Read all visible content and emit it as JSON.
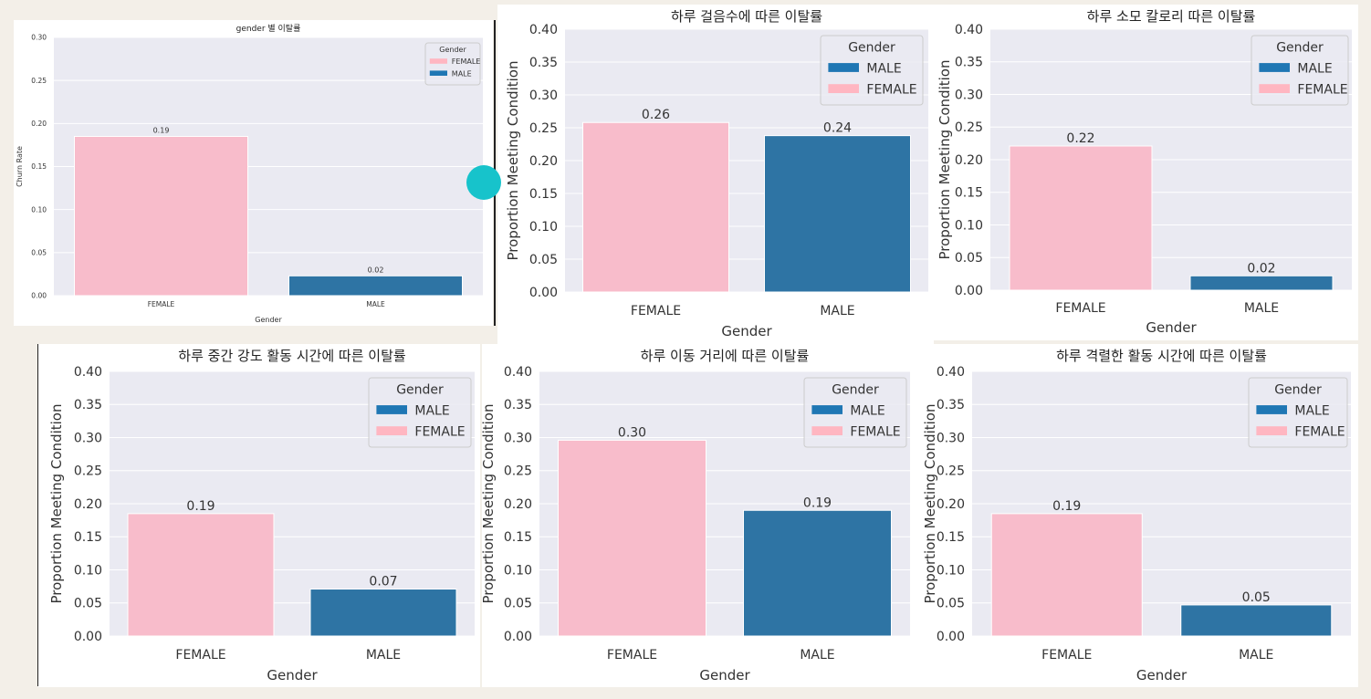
{
  "colors": {
    "female": "#f8bccb",
    "male": "#2e74a4",
    "male_legend": "#1f77b4",
    "female_legend": "#ffb6c1",
    "plot_bg": "#eaeaf2",
    "cursor": "#17c3cb"
  },
  "chart_data": [
    {
      "type": "bar",
      "title": "gender 별 이탈률",
      "xlabel": "Gender",
      "ylabel": "Churn Rate",
      "categories": [
        "FEMALE",
        "MALE"
      ],
      "values": [
        0.185,
        0.023
      ],
      "data_labels": [
        "0.19",
        "0.02"
      ],
      "ylim": [
        0,
        0.3
      ],
      "yticks": [
        "0.00",
        "0.05",
        "0.10",
        "0.15",
        "0.20",
        "0.25",
        "0.30"
      ],
      "grid": true,
      "legend": {
        "title": "Gender",
        "position": "top-right",
        "entries": [
          "FEMALE",
          "MALE"
        ]
      }
    },
    {
      "type": "bar",
      "title": "하루 걸음수에 따른 이탈률",
      "xlabel": "Gender",
      "ylabel": "Proportion Meeting Condition",
      "categories": [
        "FEMALE",
        "MALE"
      ],
      "values": [
        0.258,
        0.238
      ],
      "data_labels": [
        "0.26",
        "0.24"
      ],
      "ylim": [
        0,
        0.4
      ],
      "yticks": [
        "0.00",
        "0.05",
        "0.10",
        "0.15",
        "0.20",
        "0.25",
        "0.30",
        "0.35",
        "0.40"
      ],
      "grid": true,
      "legend": {
        "title": "Gender",
        "position": "top-right",
        "entries": [
          "MALE",
          "FEMALE"
        ]
      }
    },
    {
      "type": "bar",
      "title": "하루 소모 칼로리 따른 이탈률",
      "xlabel": "Gender",
      "ylabel": "Proportion Meeting Condition",
      "categories": [
        "FEMALE",
        "MALE"
      ],
      "values": [
        0.221,
        0.022
      ],
      "data_labels": [
        "0.22",
        "0.02"
      ],
      "ylim": [
        0,
        0.4
      ],
      "yticks": [
        "0.00",
        "0.05",
        "0.10",
        "0.15",
        "0.20",
        "0.25",
        "0.30",
        "0.35",
        "0.40"
      ],
      "grid": true,
      "legend": {
        "title": "Gender",
        "position": "top-right",
        "entries": [
          "MALE",
          "FEMALE"
        ]
      }
    },
    {
      "type": "bar",
      "title": "하루 중간 강도 활동 시간에 따른 이탈률",
      "xlabel": "Gender",
      "ylabel": "Proportion Meeting Condition",
      "categories": [
        "FEMALE",
        "MALE"
      ],
      "values": [
        0.185,
        0.071
      ],
      "data_labels": [
        "0.19",
        "0.07"
      ],
      "ylim": [
        0,
        0.4
      ],
      "yticks": [
        "0.00",
        "0.05",
        "0.10",
        "0.15",
        "0.20",
        "0.25",
        "0.30",
        "0.35",
        "0.40"
      ],
      "grid": true,
      "legend": {
        "title": "Gender",
        "position": "top-right",
        "entries": [
          "MALE",
          "FEMALE"
        ]
      }
    },
    {
      "type": "bar",
      "title": "하루 이동 거리에 따른 이탈률",
      "xlabel": "Gender",
      "ylabel": "Proportion Meeting Condition",
      "categories": [
        "FEMALE",
        "MALE"
      ],
      "values": [
        0.296,
        0.19
      ],
      "data_labels": [
        "0.30",
        "0.19"
      ],
      "ylim": [
        0,
        0.4
      ],
      "yticks": [
        "0.00",
        "0.05",
        "0.10",
        "0.15",
        "0.20",
        "0.25",
        "0.30",
        "0.35",
        "0.40"
      ],
      "grid": true,
      "legend": {
        "title": "Gender",
        "position": "top-right",
        "entries": [
          "MALE",
          "FEMALE"
        ]
      }
    },
    {
      "type": "bar",
      "title": "하루 격렬한 활동 시간에 따른 이탈률",
      "xlabel": "Gender",
      "ylabel": "Proportion Meeting Condition",
      "categories": [
        "FEMALE",
        "MALE"
      ],
      "values": [
        0.185,
        0.047
      ],
      "data_labels": [
        "0.19",
        "0.05"
      ],
      "ylim": [
        0,
        0.4
      ],
      "yticks": [
        "0.00",
        "0.05",
        "0.10",
        "0.15",
        "0.20",
        "0.25",
        "0.30",
        "0.35",
        "0.40"
      ],
      "grid": true,
      "legend": {
        "title": "Gender",
        "position": "top-right",
        "entries": [
          "MALE",
          "FEMALE"
        ]
      }
    }
  ]
}
